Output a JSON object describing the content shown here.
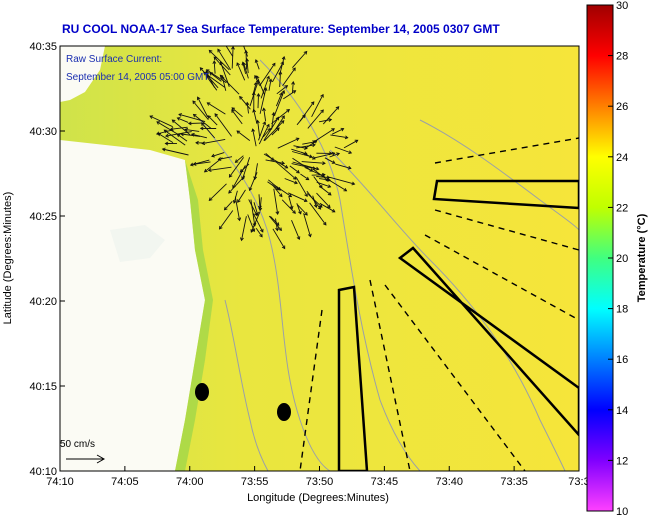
{
  "chart_data": {
    "type": "heatmap",
    "title": "RU COOL  NOAA-17  Sea Surface Temperature:  September 14, 2005 0307 GMT",
    "xlabel": "Longitude (Degrees:Minutes)",
    "ylabel": "Latitude (Degrees:Minutes)",
    "x_ticks": [
      "74:10",
      "74:05",
      "74:00",
      "73:55",
      "73:50",
      "73:45",
      "73:40",
      "73:35",
      "73:3"
    ],
    "y_ticks": [
      "40:10",
      "40:15",
      "40:20",
      "40:25",
      "40:30",
      "40:35"
    ],
    "xlim": [
      -74.1667,
      -73.5
    ],
    "ylim": [
      40.1667,
      40.5833
    ],
    "colorbar": {
      "label": "Temperature (°C)",
      "min": 10,
      "max": 30,
      "ticks": [
        "10",
        "12",
        "14",
        "16",
        "18",
        "20",
        "22",
        "24",
        "26",
        "28",
        "30"
      ]
    },
    "dominant_value_celsius": 22.5,
    "annotations": {
      "current_title": "Raw Surface Current:",
      "current_time": "September 14, 2005 05:00 GMT",
      "scale_label": "50 cm/s"
    },
    "colors": {
      "land": "#fbfbf4",
      "sst_warm": "#f4e63e",
      "sst_cool": "#c8e24a",
      "contour": "#9aa0a8",
      "vector": "#111111",
      "title_text": "#0000c8"
    }
  }
}
